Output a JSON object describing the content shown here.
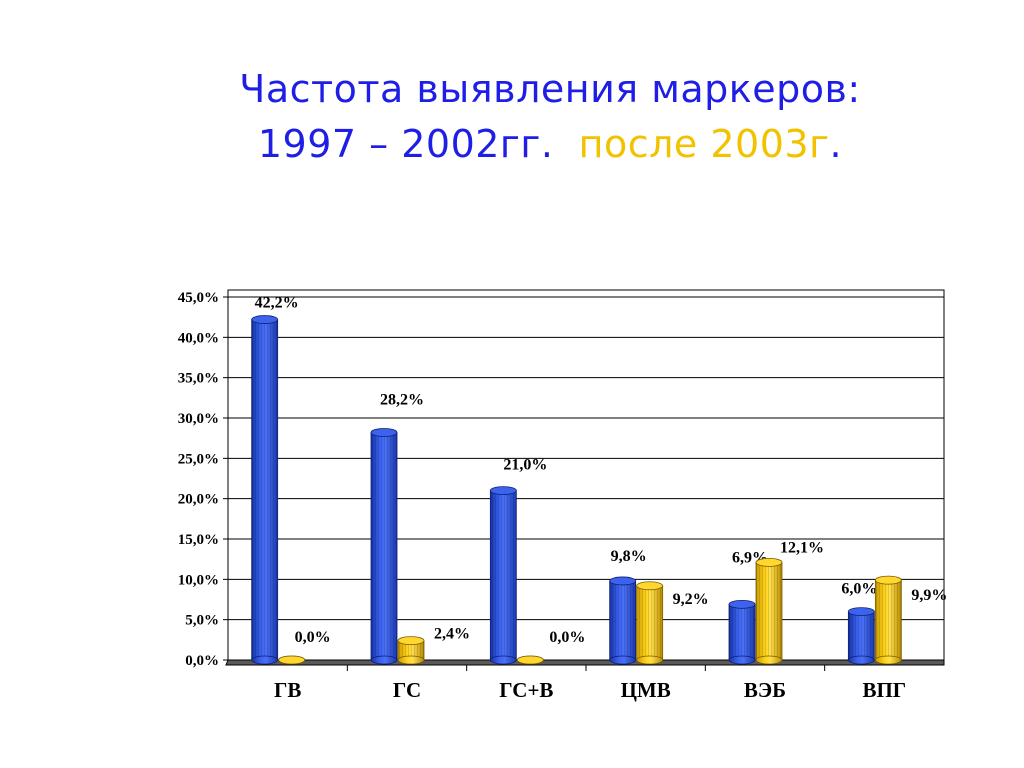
{
  "title": {
    "line1": "Частота выявления маркеров:",
    "line2_part1": "1997 – 2002гг.",
    "line2_part2": "после 2003г",
    "line2_part3": "."
  },
  "colors": {
    "title": "#1e1ee6",
    "title_accent": "#f2c200",
    "series_1997_2002": "#2a4fd9",
    "series_after_2003": "#f2c200"
  },
  "chart_data": {
    "type": "bar",
    "categories": [
      "ГВ",
      "ГС",
      "ГС+В",
      "ЦМВ",
      "ВЭБ",
      "ВПГ"
    ],
    "series": [
      {
        "values": [
          42.2,
          28.2,
          21.0,
          9.8,
          6.9,
          6.0
        ],
        "labels": [
          "42,2%",
          "28,2%",
          "21,0%",
          "9,8%",
          "6,9%",
          "6,0%"
        ]
      },
      {
        "values": [
          0.0,
          2.4,
          0.0,
          9.2,
          12.1,
          9.9
        ],
        "labels": [
          "0,0%",
          "2,4%",
          "0,0%",
          "9,2%",
          "12,1%",
          "9,9%"
        ]
      }
    ],
    "ylim": [
      0,
      45
    ],
    "yticks": [
      "0,0%",
      "5,0%",
      "10,0%",
      "15,0%",
      "20,0%",
      "25,0%",
      "30,0%",
      "35,0%",
      "40,0%",
      "45,0%"
    ],
    "grid": true,
    "legend": "none",
    "style": "3d-cylinder"
  }
}
